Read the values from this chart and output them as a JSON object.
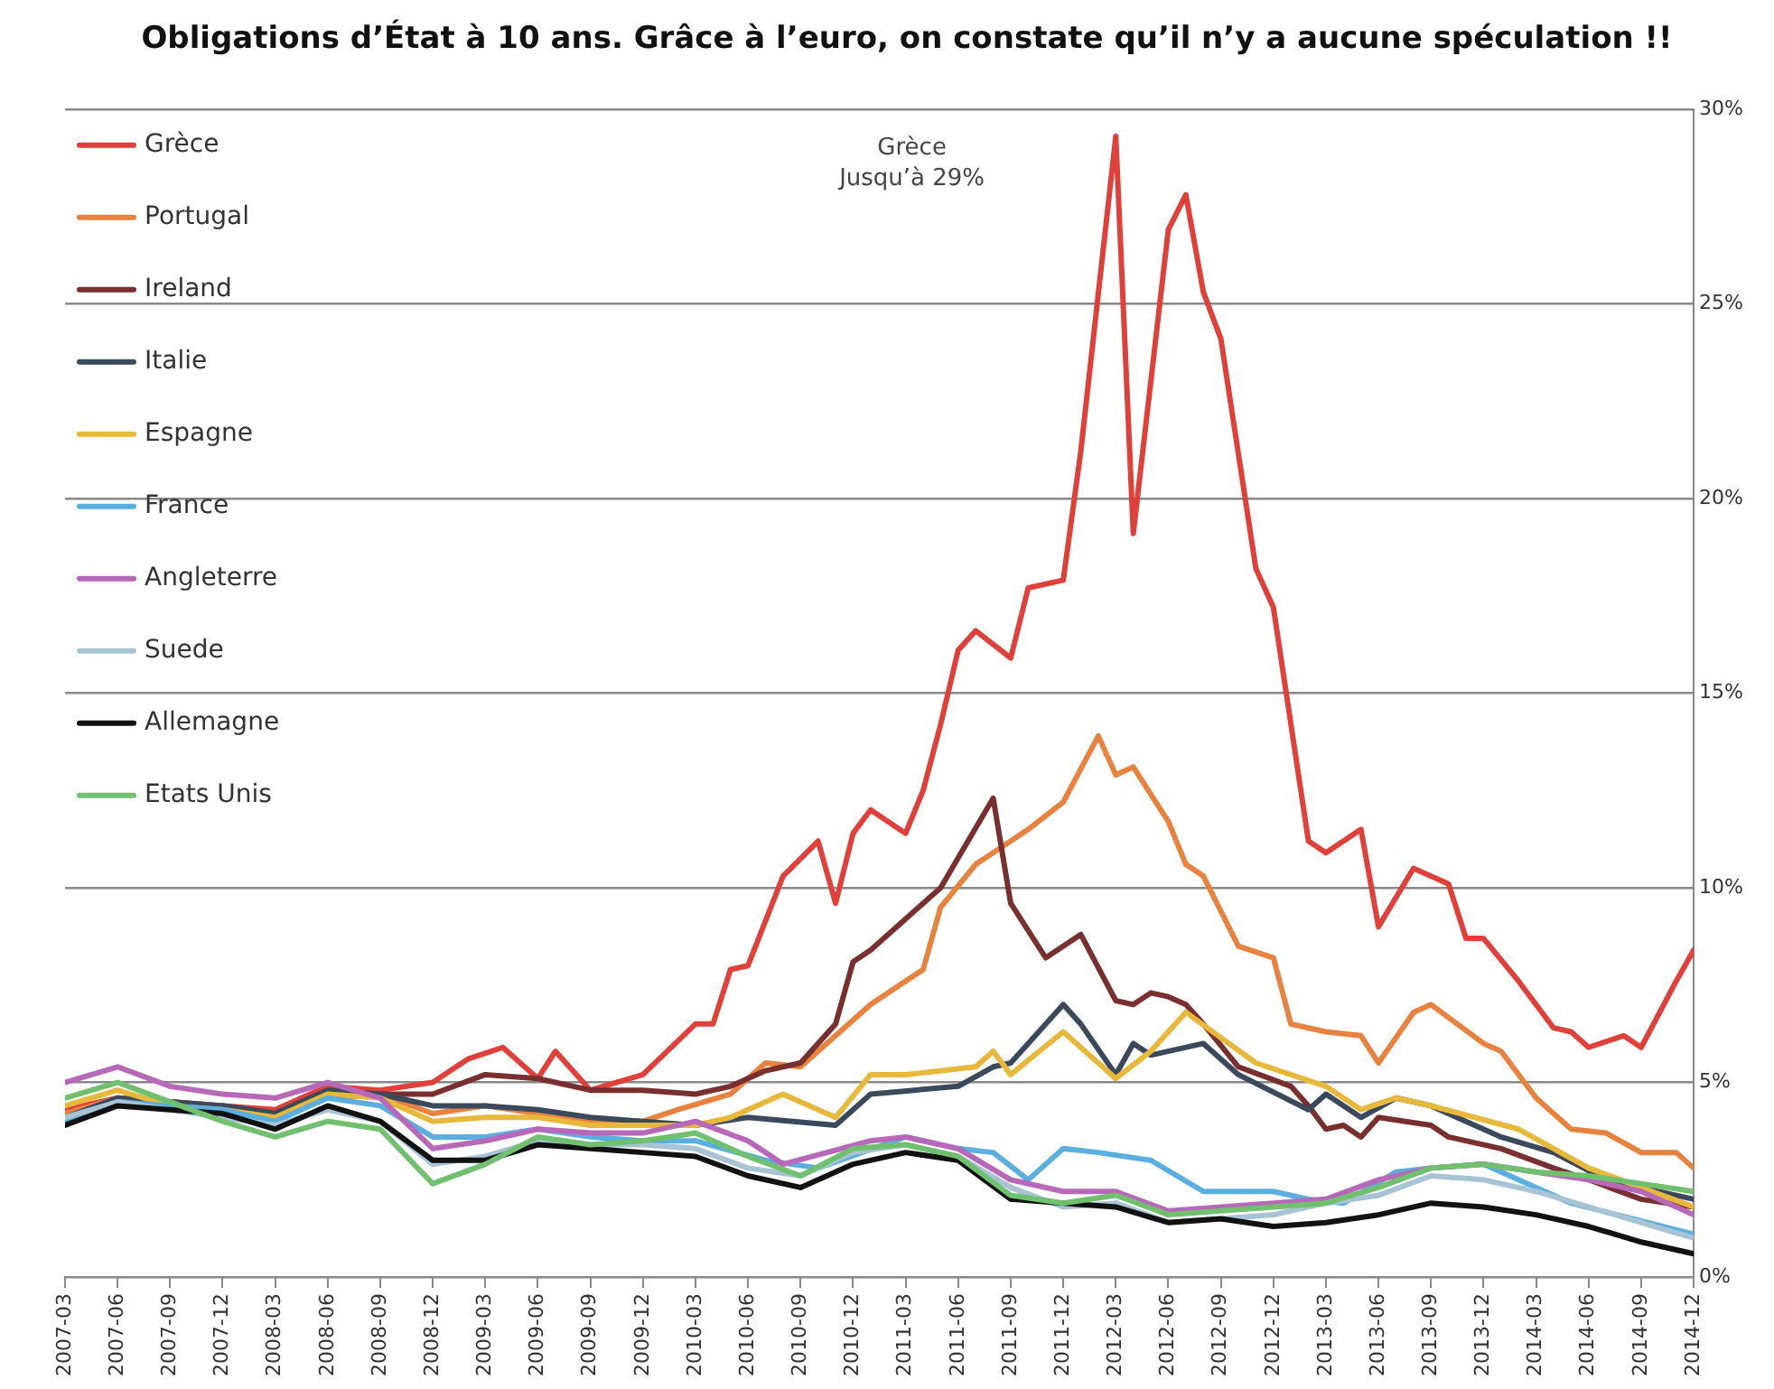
{
  "chart_data": {
    "type": "line",
    "title": "Obligations d’État à 10 ans. Grâce à l’euro, on constate qu’il n’y a aucune spéculation !!",
    "xlim": [
      "2007-03",
      "2014-12"
    ],
    "xticks": [
      "2007-03",
      "2007-06",
      "2007-09",
      "2007-12",
      "2008-03",
      "2008-06",
      "2008-09",
      "2008-12",
      "2009-03",
      "2009-06",
      "2009-09",
      "2009-12",
      "2010-03",
      "2010-06",
      "2010-09",
      "2010-12",
      "2011-03",
      "2011-06",
      "2011-09",
      "2011-12",
      "2012-03",
      "2012-06",
      "2012-09",
      "2012-12",
      "2013-03",
      "2013-06",
      "2013-09",
      "2013-12",
      "2014-03",
      "2014-06",
      "2014-09",
      "2014-12"
    ],
    "ylim": [
      0,
      30
    ],
    "yticks": [
      {
        "value": 0,
        "label": "0%"
      },
      {
        "value": 5,
        "label": "5%"
      },
      {
        "value": 10,
        "label": "10%"
      },
      {
        "value": 15,
        "label": "15%"
      },
      {
        "value": 20,
        "label": "20%"
      },
      {
        "value": 25,
        "label": "25%"
      },
      {
        "value": 30,
        "label": "30%"
      }
    ],
    "grid": "y",
    "legend": "top left",
    "marker": "none",
    "annotations": [
      "Grèce\nJusqu’à 29%"
    ],
    "series": [
      {
        "name": "Grèce",
        "color": "#e0403a",
        "x": [
          "2007-03",
          "2007-06",
          "2007-09",
          "2007-12",
          "2008-03",
          "2008-06",
          "2008-09",
          "2008-12",
          "2009-02",
          "2009-04",
          "2009-06",
          "2009-07",
          "2009-09",
          "2009-12",
          "2010-03",
          "2010-04",
          "2010-05",
          "2010-06",
          "2010-08",
          "2010-10",
          "2010-11",
          "2010-12",
          "2011-01",
          "2011-03",
          "2011-04",
          "2011-05",
          "2011-06",
          "2011-07",
          "2011-09",
          "2011-10",
          "2011-12",
          "2012-01",
          "2012-03",
          "2012-04",
          "2012-06",
          "2012-07",
          "2012-08",
          "2012-09",
          "2012-11",
          "2012-12",
          "2013-01",
          "2013-02",
          "2013-03",
          "2013-05",
          "2013-06",
          "2013-08",
          "2013-10",
          "2013-11",
          "2013-12",
          "2014-02",
          "2014-04",
          "2014-05",
          "2014-06",
          "2014-08",
          "2014-09",
          "2014-11",
          "2014-12"
        ],
        "values": [
          4.3,
          4.6,
          4.5,
          4.4,
          4.3,
          4.9,
          4.8,
          5.0,
          5.6,
          5.9,
          5.1,
          5.8,
          4.8,
          5.2,
          6.5,
          6.5,
          7.9,
          8.0,
          10.3,
          11.2,
          9.6,
          11.4,
          12.0,
          11.4,
          12.5,
          14.2,
          16.1,
          16.6,
          15.9,
          17.7,
          17.9,
          21.2,
          29.3,
          19.1,
          26.9,
          27.8,
          25.3,
          24.1,
          18.2,
          17.2,
          14.2,
          11.2,
          10.9,
          11.5,
          9.0,
          10.5,
          10.1,
          8.7,
          8.7,
          7.6,
          6.4,
          6.3,
          5.9,
          6.2,
          5.9,
          7.6,
          8.4
        ]
      },
      {
        "name": "Portugal",
        "color": "#e8823f",
        "x": [
          "2007-03",
          "2007-06",
          "2007-09",
          "2007-12",
          "2008-03",
          "2008-06",
          "2008-09",
          "2008-12",
          "2009-03",
          "2009-06",
          "2009-09",
          "2009-12",
          "2010-02",
          "2010-05",
          "2010-07",
          "2010-09",
          "2010-12",
          "2011-01",
          "2011-04",
          "2011-05",
          "2011-07",
          "2011-08",
          "2011-10",
          "2011-12",
          "2012-02",
          "2012-03",
          "2012-04",
          "2012-06",
          "2012-07",
          "2012-08",
          "2012-10",
          "2012-12",
          "2013-01",
          "2013-03",
          "2013-05",
          "2013-06",
          "2013-08",
          "2013-09",
          "2013-12",
          "2014-01",
          "2014-03",
          "2014-05",
          "2014-07",
          "2014-09",
          "2014-11",
          "2014-12"
        ],
        "values": [
          4.2,
          4.6,
          4.5,
          4.4,
          4.1,
          4.6,
          4.7,
          4.2,
          4.4,
          4.2,
          4.0,
          4.0,
          4.3,
          4.7,
          5.5,
          5.4,
          6.6,
          7.0,
          7.9,
          9.5,
          10.6,
          10.9,
          11.5,
          12.2,
          13.9,
          12.9,
          13.1,
          11.7,
          10.6,
          10.3,
          8.5,
          8.2,
          6.5,
          6.3,
          6.2,
          5.5,
          6.8,
          7.0,
          6.0,
          5.8,
          4.6,
          3.8,
          3.7,
          3.2,
          3.2,
          2.8
        ]
      },
      {
        "name": "Ireland",
        "color": "#7a2f2f",
        "x": [
          "2007-03",
          "2007-06",
          "2007-09",
          "2007-12",
          "2008-03",
          "2008-06",
          "2008-09",
          "2008-12",
          "2009-03",
          "2009-06",
          "2009-09",
          "2009-12",
          "2010-03",
          "2010-05",
          "2010-07",
          "2010-09",
          "2010-11",
          "2010-12",
          "2011-01",
          "2011-04",
          "2011-05",
          "2011-08",
          "2011-09",
          "2011-11",
          "2012-01",
          "2012-03",
          "2012-04",
          "2012-05",
          "2012-06",
          "2012-07",
          "2012-08",
          "2012-10",
          "2013-01",
          "2013-02",
          "2013-03",
          "2013-04",
          "2013-05",
          "2013-06",
          "2013-09",
          "2013-10",
          "2014-01",
          "2014-04",
          "2014-06",
          "2014-09",
          "2014-12"
        ],
        "values": [
          4.0,
          4.5,
          4.4,
          4.4,
          4.2,
          4.8,
          4.7,
          4.7,
          5.2,
          5.1,
          4.8,
          4.8,
          4.7,
          4.9,
          5.3,
          5.5,
          6.5,
          8.1,
          8.4,
          9.6,
          10.0,
          12.3,
          9.6,
          8.2,
          8.8,
          7.1,
          7.0,
          7.3,
          7.2,
          7.0,
          6.5,
          5.4,
          4.9,
          4.4,
          3.8,
          3.9,
          3.6,
          4.1,
          3.9,
          3.6,
          3.3,
          2.8,
          2.5,
          2.0,
          1.8
        ]
      },
      {
        "name": "Italie",
        "color": "#3a4a5c",
        "x": [
          "2007-03",
          "2007-06",
          "2007-09",
          "2007-12",
          "2008-03",
          "2008-06",
          "2008-09",
          "2008-12",
          "2009-03",
          "2009-06",
          "2009-09",
          "2009-12",
          "2010-03",
          "2010-06",
          "2010-11",
          "2011-01",
          "2011-06",
          "2011-08",
          "2011-09",
          "2011-12",
          "2012-01",
          "2012-03",
          "2012-04",
          "2012-05",
          "2012-08",
          "2012-10",
          "2013-02",
          "2013-03",
          "2013-05",
          "2013-07",
          "2013-09",
          "2014-01",
          "2014-04",
          "2014-07",
          "2014-12"
        ],
        "values": [
          4.1,
          4.6,
          4.5,
          4.4,
          4.2,
          4.8,
          4.7,
          4.4,
          4.4,
          4.3,
          4.1,
          4.0,
          3.9,
          4.1,
          3.9,
          4.7,
          4.9,
          5.4,
          5.5,
          7.0,
          6.5,
          5.2,
          6.0,
          5.7,
          6.0,
          5.2,
          4.3,
          4.7,
          4.1,
          4.6,
          4.4,
          3.6,
          3.2,
          2.5,
          2.0
        ]
      },
      {
        "name": "Espagne",
        "color": "#e8b83a",
        "x": [
          "2007-03",
          "2007-06",
          "2007-09",
          "2007-12",
          "2008-03",
          "2008-06",
          "2008-09",
          "2008-12",
          "2009-03",
          "2009-06",
          "2009-09",
          "2009-12",
          "2010-03",
          "2010-05",
          "2010-08",
          "2010-11",
          "2011-01",
          "2011-03",
          "2011-07",
          "2011-08",
          "2011-09",
          "2011-12",
          "2012-02",
          "2012-03",
          "2012-05",
          "2012-07",
          "2012-11",
          "2013-03",
          "2013-05",
          "2013-07",
          "2013-09",
          "2014-02",
          "2014-06",
          "2014-12"
        ],
        "values": [
          4.4,
          4.8,
          4.4,
          4.3,
          4.1,
          4.7,
          4.6,
          4.0,
          4.1,
          4.1,
          3.9,
          3.9,
          3.9,
          4.1,
          4.7,
          4.1,
          5.2,
          5.2,
          5.4,
          5.8,
          5.2,
          6.3,
          5.5,
          5.1,
          5.8,
          6.8,
          5.5,
          4.9,
          4.3,
          4.6,
          4.4,
          3.8,
          2.8,
          1.8
        ]
      },
      {
        "name": "France",
        "color": "#5aaee0",
        "x": [
          "2007-03",
          "2007-06",
          "2007-09",
          "2007-12",
          "2008-03",
          "2008-06",
          "2008-09",
          "2008-12",
          "2009-03",
          "2009-06",
          "2009-09",
          "2009-12",
          "2010-03",
          "2010-07",
          "2010-10",
          "2011-03",
          "2011-06",
          "2011-08",
          "2011-10",
          "2011-12",
          "2012-02",
          "2012-05",
          "2012-08",
          "2012-12",
          "2013-02",
          "2013-04",
          "2013-07",
          "2013-09",
          "2013-12",
          "2014-05",
          "2014-12"
        ],
        "values": [
          4.0,
          4.5,
          4.4,
          4.3,
          4.0,
          4.6,
          4.4,
          3.6,
          3.6,
          3.8,
          3.6,
          3.5,
          3.5,
          3.0,
          2.8,
          3.6,
          3.3,
          3.2,
          2.5,
          3.3,
          3.2,
          3.0,
          2.2,
          2.2,
          2.0,
          1.9,
          2.7,
          2.8,
          2.9,
          1.9,
          1.1
        ]
      },
      {
        "name": "Angleterre",
        "color": "#b868b8",
        "x": [
          "2007-03",
          "2007-06",
          "2007-09",
          "2007-12",
          "2008-03",
          "2008-06",
          "2008-09",
          "2008-12",
          "2009-03",
          "2009-06",
          "2009-09",
          "2009-12",
          "2010-03",
          "2010-06",
          "2010-08",
          "2011-01",
          "2011-03",
          "2011-06",
          "2011-09",
          "2011-12",
          "2012-03",
          "2012-06",
          "2012-09",
          "2012-12",
          "2013-03",
          "2013-06",
          "2013-09",
          "2013-12",
          "2014-03",
          "2014-06",
          "2014-09",
          "2014-12"
        ],
        "values": [
          5.0,
          5.4,
          4.9,
          4.7,
          4.6,
          5.0,
          4.6,
          3.3,
          3.5,
          3.8,
          3.7,
          3.7,
          4.0,
          3.5,
          2.9,
          3.5,
          3.6,
          3.3,
          2.5,
          2.2,
          2.2,
          1.7,
          1.8,
          1.9,
          2.0,
          2.5,
          2.8,
          2.9,
          2.7,
          2.5,
          2.2,
          1.6
        ]
      },
      {
        "name": "Suede",
        "color": "#a8c4d4",
        "x": [
          "2007-03",
          "2007-06",
          "2007-09",
          "2007-12",
          "2008-03",
          "2008-06",
          "2008-09",
          "2008-12",
          "2009-03",
          "2009-06",
          "2009-09",
          "2009-12",
          "2010-03",
          "2010-06",
          "2010-09",
          "2010-12",
          "2011-03",
          "2011-06",
          "2011-09",
          "2011-12",
          "2012-03",
          "2012-06",
          "2012-09",
          "2012-12",
          "2013-03",
          "2013-06",
          "2013-09",
          "2013-12",
          "2014-03",
          "2014-06",
          "2014-09",
          "2014-12"
        ],
        "values": [
          4.1,
          4.5,
          4.3,
          4.1,
          3.9,
          4.3,
          4.0,
          2.9,
          3.1,
          3.5,
          3.4,
          3.4,
          3.3,
          2.8,
          2.6,
          3.2,
          3.4,
          3.1,
          2.3,
          1.8,
          1.9,
          1.4,
          1.5,
          1.6,
          1.9,
          2.1,
          2.6,
          2.5,
          2.2,
          1.8,
          1.4,
          1.0
        ]
      },
      {
        "name": "Allemagne",
        "color": "#111111",
        "x": [
          "2007-03",
          "2007-06",
          "2007-09",
          "2007-12",
          "2008-03",
          "2008-06",
          "2008-09",
          "2008-12",
          "2009-03",
          "2009-06",
          "2009-09",
          "2009-12",
          "2010-03",
          "2010-06",
          "2010-09",
          "2010-12",
          "2011-03",
          "2011-06",
          "2011-09",
          "2011-12",
          "2012-03",
          "2012-06",
          "2012-09",
          "2012-12",
          "2013-03",
          "2013-06",
          "2013-09",
          "2013-12",
          "2014-03",
          "2014-06",
          "2014-09",
          "2014-12"
        ],
        "values": [
          3.9,
          4.4,
          4.3,
          4.2,
          3.8,
          4.4,
          4.0,
          3.0,
          3.0,
          3.4,
          3.3,
          3.2,
          3.1,
          2.6,
          2.3,
          2.9,
          3.2,
          3.0,
          2.0,
          1.9,
          1.8,
          1.4,
          1.5,
          1.3,
          1.4,
          1.6,
          1.9,
          1.8,
          1.6,
          1.3,
          0.9,
          0.6
        ]
      },
      {
        "name": "Etats Unis",
        "color": "#70c070",
        "x": [
          "2007-03",
          "2007-06",
          "2007-09",
          "2007-12",
          "2008-03",
          "2008-06",
          "2008-09",
          "2008-12",
          "2009-03",
          "2009-06",
          "2009-09",
          "2009-12",
          "2010-03",
          "2010-06",
          "2010-09",
          "2010-12",
          "2011-03",
          "2011-06",
          "2011-09",
          "2011-12",
          "2012-03",
          "2012-06",
          "2012-09",
          "2012-12",
          "2013-03",
          "2013-06",
          "2013-09",
          "2013-12",
          "2014-03",
          "2014-06",
          "2014-09",
          "2014-12"
        ],
        "values": [
          4.6,
          5.0,
          4.5,
          4.0,
          3.6,
          4.0,
          3.8,
          2.4,
          2.9,
          3.6,
          3.4,
          3.5,
          3.7,
          3.1,
          2.6,
          3.3,
          3.4,
          3.1,
          2.1,
          1.9,
          2.1,
          1.6,
          1.7,
          1.8,
          1.9,
          2.3,
          2.8,
          2.9,
          2.7,
          2.6,
          2.4,
          2.2
        ]
      }
    ]
  }
}
